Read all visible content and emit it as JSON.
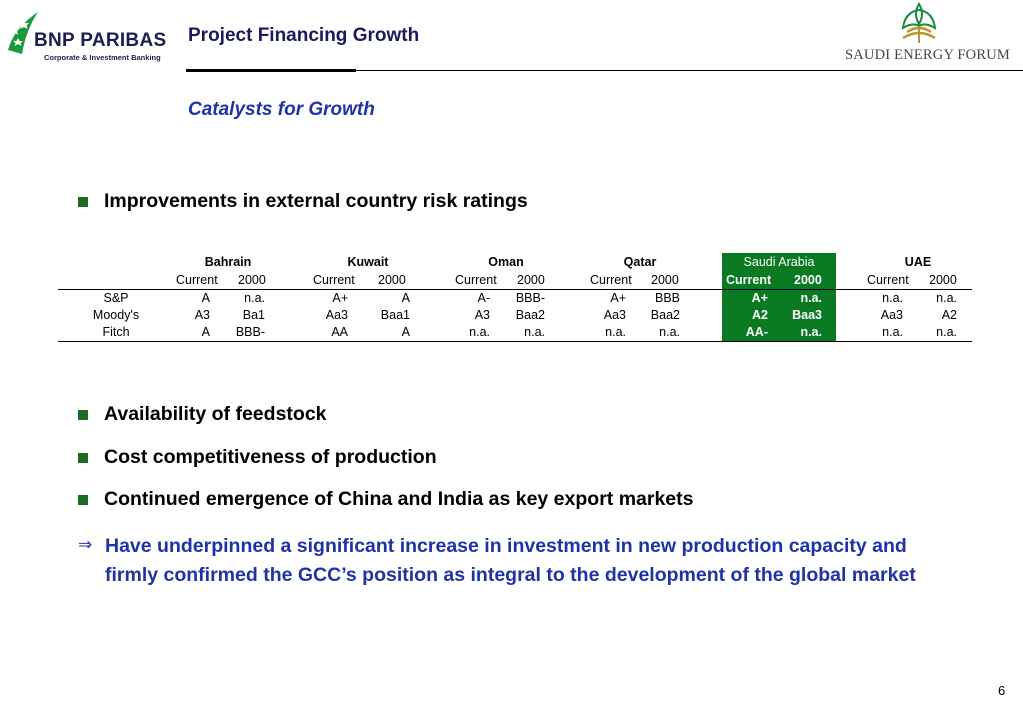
{
  "header": {
    "logo_left_name": "BNP PARIBAS",
    "logo_left_sub": "Corporate & Investment Banking",
    "title": "Project Financing Growth",
    "logo_right_text": "SAUDI ENERGY FORUM"
  },
  "subtitle": "Catalysts for Growth",
  "bullets_top": [
    "Improvements in external country risk ratings"
  ],
  "table": {
    "countries": [
      "Bahrain",
      "Kuwait",
      "Oman",
      "Qatar",
      "Saudi Arabia",
      "UAE"
    ],
    "subheaders": [
      "Current",
      "2000"
    ],
    "highlight_country": "Saudi Arabia",
    "highlight_color": "#0a7a22",
    "rows": [
      {
        "label": "S&P",
        "values": [
          "A",
          "n.a.",
          "A+",
          "A",
          "A-",
          "BBB-",
          "A+",
          "BBB",
          "A+",
          "n.a.",
          "n.a.",
          "n.a."
        ]
      },
      {
        "label": "Moody's",
        "values": [
          "A3",
          "Ba1",
          "Aa3",
          "Baa1",
          "A3",
          "Baa2",
          "Aa3",
          "Baa2",
          "A2",
          "Baa3",
          "Aa3",
          "A2"
        ]
      },
      {
        "label": "Fitch",
        "values": [
          "A",
          "BBB-",
          "AA",
          "A",
          "n.a.",
          "n.a.",
          "n.a.",
          "n.a.",
          "AA-",
          "n.a.",
          "n.a.",
          "n.a."
        ]
      }
    ]
  },
  "bullets_bottom": [
    "Availability of feedstock",
    "Cost competitiveness of production",
    "Continued emergence of China and India as key export markets"
  ],
  "conclusion": {
    "icon": "double-right-arrow-icon",
    "glyph": "⇒",
    "text": "Have underpinned a significant increase in investment in new production capacity and firmly confirmed the GCC’s position as integral to the development of the global market"
  },
  "page_number": "6",
  "colors": {
    "bullet": "#1d6b24",
    "accent_blue": "#1f33a8",
    "title_navy": "#1a1a5c"
  }
}
